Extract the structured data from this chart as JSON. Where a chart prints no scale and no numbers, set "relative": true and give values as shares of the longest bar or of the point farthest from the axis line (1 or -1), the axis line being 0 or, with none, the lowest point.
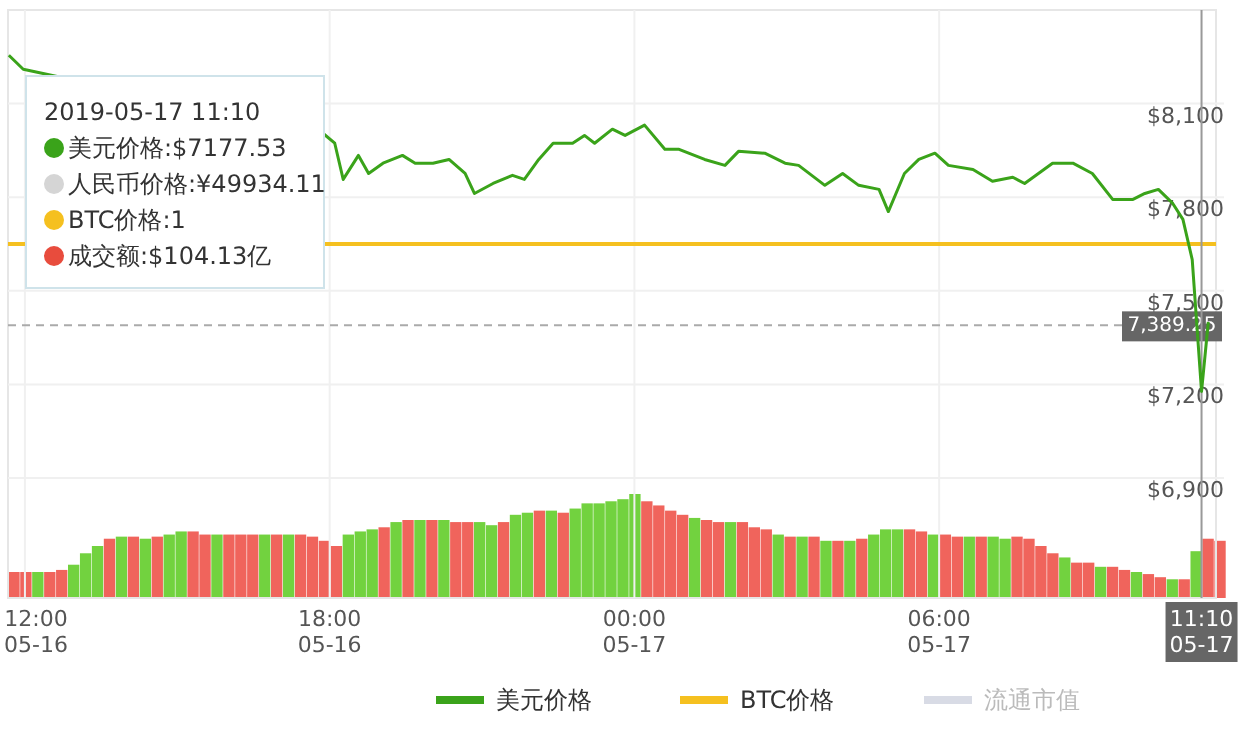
{
  "chart_data": [
    {
      "type": "line",
      "x": [
        "2019-05-16T11:41",
        "2019-05-16T11:58",
        "2019-05-16T17:52",
        "2019-05-16T18:06",
        "2019-05-16T18:16",
        "2019-05-16T18:34",
        "2019-05-16T18:46",
        "2019-05-16T19:03",
        "2019-05-16T19:26",
        "2019-05-16T19:41",
        "2019-05-16T20:02",
        "2019-05-16T20:21",
        "2019-05-16T20:40",
        "2019-05-16T20:51",
        "2019-05-16T21:13",
        "2019-05-16T21:36",
        "2019-05-16T21:50",
        "2019-05-16T22:07",
        "2019-05-16T22:24",
        "2019-05-16T22:47",
        "2019-05-16T23:01",
        "2019-05-16T23:13",
        "2019-05-16T23:34",
        "2019-05-16T23:49",
        "2019-05-17T00:12",
        "2019-05-17T00:36",
        "2019-05-17T00:52",
        "2019-05-17T01:23",
        "2019-05-17T01:47",
        "2019-05-17T02:03",
        "2019-05-17T02:34",
        "2019-05-17T02:58",
        "2019-05-17T03:14",
        "2019-05-17T03:45",
        "2019-05-17T04:06",
        "2019-05-17T04:25",
        "2019-05-17T04:49",
        "2019-05-17T05:00",
        "2019-05-17T05:19",
        "2019-05-17T05:36",
        "2019-05-17T05:55",
        "2019-05-17T06:11",
        "2019-05-17T06:40",
        "2019-05-17T07:03",
        "2019-05-17T07:27",
        "2019-05-17T07:41",
        "2019-05-17T08:14",
        "2019-05-17T08:38",
        "2019-05-17T09:01",
        "2019-05-17T09:25",
        "2019-05-17T09:49",
        "2019-05-17T10:03",
        "2019-05-17T10:19",
        "2019-05-17T10:36",
        "2019-05-17T10:48",
        "2019-05-17T10:59",
        "2019-05-17T11:10",
        "2019-05-17T11:18"
      ],
      "series": [
        {
          "name": "美元价格",
          "color": "#3aa31a",
          "values": [
            8255,
            8210,
            8005,
            7973,
            7857,
            7934,
            7876,
            7909,
            7934,
            7909,
            7909,
            7921,
            7876,
            7812,
            7844,
            7870,
            7857,
            7921,
            7973,
            7973,
            7998,
            7973,
            8018,
            7998,
            8031,
            7954,
            7954,
            7921,
            7902,
            7947,
            7941,
            7909,
            7902,
            7838,
            7876,
            7838,
            7825,
            7754,
            7876,
            7921,
            7941,
            7902,
            7889,
            7851,
            7864,
            7844,
            7909,
            7909,
            7876,
            7793,
            7793,
            7812,
            7825,
            7780,
            7729,
            7600,
            7177.53,
            7400
          ]
        },
        {
          "name": "流通市值",
          "color": "#d8dbe5",
          "values": [
            null,
            null,
            null,
            null,
            null,
            null,
            null,
            null,
            null,
            null,
            null,
            null,
            null,
            null,
            null,
            null,
            null,
            null,
            null,
            null,
            null,
            null,
            null,
            null,
            null,
            null,
            null,
            null,
            null,
            null,
            null,
            null,
            null,
            null,
            null,
            null,
            null,
            null,
            null,
            null,
            null,
            null,
            null,
            null,
            null,
            null,
            null,
            null,
            null,
            null,
            null,
            null,
            null,
            null,
            null,
            null,
            null,
            null
          ]
        }
      ],
      "xlim": [
        "2019-05-16T11:40",
        "2019-05-17T11:20"
      ],
      "xticks": [
        {
          "value": "2019-05-16T12:00",
          "label": "12:00\n05-16"
        },
        {
          "value": "2019-05-16T18:00",
          "label": "18:00\n05-16"
        },
        {
          "value": "2019-05-17T00:00",
          "label": "00:00\n05-17"
        },
        {
          "value": "2019-05-17T06:00",
          "label": "06:00\n05-17"
        }
      ],
      "ylim": [
        6900,
        8400
      ],
      "yticks": [
        {
          "value": 6900,
          "label": "$6,900"
        },
        {
          "value": 7200,
          "label": "$7,200"
        },
        {
          "value": 7500,
          "label": "$7,500"
        },
        {
          "value": 7800,
          "label": "$7,800"
        },
        {
          "value": 8100,
          "label": "$8,100"
        }
      ],
      "grid": true,
      "legend": "bottom",
      "ref_lines": [
        {
          "axis": "y",
          "value": 7650,
          "label": "BTC价格",
          "color": "#f5c01f"
        },
        {
          "axis": "y",
          "value": 7389.25,
          "label": "7,389.25",
          "line_style": "dashed",
          "color": "#aaaaaa"
        },
        {
          "axis": "x",
          "value": "2019-05-17T11:10",
          "label": "11:10\n05-17",
          "color": "#999999"
        }
      ],
      "annotations": [
        "2019-05-17 11:10",
        "美元价格:$7177.53",
        "人民币价格:¥49934.11",
        "BTC价格:1",
        "成交额:$104.13亿"
      ]
    },
    {
      "type": "bar",
      "relative": true,
      "categories": [
        null,
        null,
        null,
        null,
        null,
        null,
        null,
        null,
        null,
        null,
        null,
        null,
        null,
        null,
        null,
        null,
        null,
        null,
        null,
        null,
        null,
        null,
        null,
        null,
        null,
        null,
        null,
        null,
        null,
        null,
        null,
        null,
        null,
        null,
        null,
        null,
        null,
        null,
        null,
        null,
        null,
        null,
        null,
        null,
        null,
        null,
        null,
        null,
        null,
        null,
        null,
        null,
        null,
        null,
        null,
        null,
        null,
        null,
        null,
        null,
        null,
        null,
        null,
        null,
        null,
        null,
        null,
        null,
        null,
        null,
        null,
        null,
        null,
        null,
        null,
        null,
        null,
        null,
        null,
        null,
        null,
        null,
        null,
        null,
        null,
        null,
        null,
        null,
        null,
        null,
        null,
        null,
        null,
        null,
        null,
        null,
        null,
        null,
        null,
        null,
        null,
        null
      ],
      "values": [
        0.25,
        0.25,
        0.25,
        0.25,
        0.27,
        0.32,
        0.43,
        0.5,
        0.57,
        0.59,
        0.59,
        0.57,
        0.59,
        0.61,
        0.64,
        0.64,
        0.61,
        0.61,
        0.61,
        0.61,
        0.61,
        0.61,
        0.61,
        0.61,
        0.61,
        0.59,
        0.55,
        0.5,
        0.61,
        0.64,
        0.66,
        0.68,
        0.73,
        0.75,
        0.75,
        0.75,
        0.75,
        0.73,
        0.73,
        0.73,
        0.7,
        0.73,
        0.8,
        0.82,
        0.84,
        0.84,
        0.82,
        0.86,
        0.91,
        0.91,
        0.93,
        0.95,
        1,
        0.93,
        0.89,
        0.84,
        0.8,
        0.77,
        0.75,
        0.73,
        0.73,
        0.73,
        0.68,
        0.66,
        0.61,
        0.59,
        0.59,
        0.59,
        0.55,
        0.55,
        0.55,
        0.57,
        0.61,
        0.66,
        0.66,
        0.66,
        0.64,
        0.61,
        0.61,
        0.59,
        0.59,
        0.59,
        0.59,
        0.57,
        0.59,
        0.57,
        0.5,
        0.43,
        0.39,
        0.34,
        0.34,
        0.3,
        0.3,
        0.27,
        0.25,
        0.23,
        0.2,
        0.18,
        0.18,
        0.45,
        0.57,
        0.55
      ],
      "colors": [
        "#f0645c",
        "#f0645c",
        "#72d23f",
        "#f0645c",
        "#f0645c",
        "#72d23f",
        "#72d23f",
        "#72d23f",
        "#f0645c",
        "#72d23f",
        "#f0645c",
        "#72d23f",
        "#f0645c",
        "#72d23f",
        "#72d23f",
        "#f0645c",
        "#f0645c",
        "#72d23f",
        "#f0645c",
        "#f0645c",
        "#f0645c",
        "#72d23f",
        "#f0645c",
        "#72d23f",
        "#f0645c",
        "#f0645c",
        "#f0645c",
        "#f0645c",
        "#72d23f",
        "#72d23f",
        "#72d23f",
        "#f0645c",
        "#72d23f",
        "#f0645c",
        "#72d23f",
        "#f0645c",
        "#72d23f",
        "#f0645c",
        "#f0645c",
        "#72d23f",
        "#72d23f",
        "#f0645c",
        "#72d23f",
        "#72d23f",
        "#f0645c",
        "#72d23f",
        "#f0645c",
        "#72d23f",
        "#72d23f",
        "#72d23f",
        "#72d23f",
        "#72d23f",
        "#72d23f",
        "#f0645c",
        "#f0645c",
        "#f0645c",
        "#f0645c",
        "#72d23f",
        "#f0645c",
        "#f0645c",
        "#72d23f",
        "#f0645c",
        "#f0645c",
        "#f0645c",
        "#72d23f",
        "#f0645c",
        "#72d23f",
        "#f0645c",
        "#72d23f",
        "#f0645c",
        "#72d23f",
        "#f0645c",
        "#72d23f",
        "#72d23f",
        "#72d23f",
        "#f0645c",
        "#f0645c",
        "#72d23f",
        "#f0645c",
        "#f0645c",
        "#72d23f",
        "#f0645c",
        "#72d23f",
        "#72d23f",
        "#f0645c",
        "#f0645c",
        "#f0645c",
        "#f0645c",
        "#72d23f",
        "#f0645c",
        "#f0645c",
        "#72d23f",
        "#f0645c",
        "#f0645c",
        "#72d23f",
        "#f0645c",
        "#f0645c",
        "#72d23f",
        "#f0645c",
        "#72d23f",
        "#f0645c",
        "#f0645c"
      ]
    }
  ]
}
